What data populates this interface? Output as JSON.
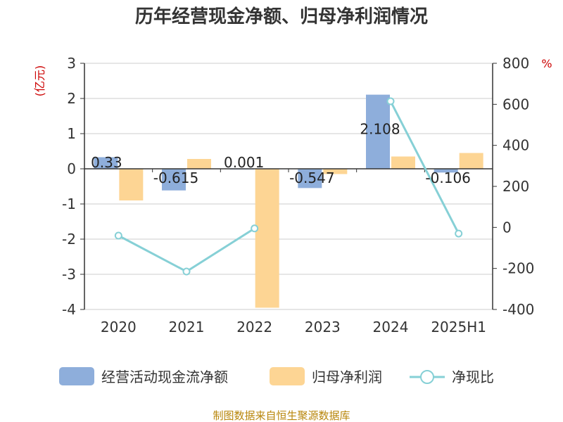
{
  "chart_data": {
    "type": "bar",
    "title": "历年经营现金净额、归母净利润情况",
    "categories": [
      "2020",
      "2021",
      "2022",
      "2023",
      "2024",
      "2025H1"
    ],
    "left_axis": {
      "unit": "(亿元)",
      "ylim": [
        -4,
        3
      ],
      "ticks": [
        "3",
        "2",
        "1",
        "0",
        "-1",
        "-2",
        "-3",
        "-4"
      ],
      "tick_values": [
        3,
        2,
        1,
        0,
        -1,
        -2,
        -3,
        -4
      ]
    },
    "right_axis": {
      "unit": "%",
      "ylim": [
        -400,
        800
      ],
      "ticks": [
        "800",
        "600",
        "400",
        "200",
        "0",
        "-200",
        "-400"
      ],
      "tick_values": [
        800,
        600,
        400,
        200,
        0,
        -200,
        -400
      ]
    },
    "series": [
      {
        "name": "经营活动现金流净额",
        "type": "bar",
        "axis": "left",
        "color": "#8eaedb",
        "values": [
          0.33,
          -0.615,
          0.001,
          -0.547,
          2.108,
          -0.106
        ],
        "labels": [
          "0.33",
          "-0.615",
          "0.001",
          "-0.547",
          "2.108",
          "-0.106"
        ]
      },
      {
        "name": "归母净利润",
        "type": "bar",
        "axis": "left",
        "color": "#fdd594",
        "values": [
          -0.9,
          0.28,
          -3.95,
          -0.15,
          0.35,
          0.45
        ]
      },
      {
        "name": "净现比",
        "type": "line",
        "axis": "right",
        "color": "#86d0d6",
        "values": [
          -40,
          -215,
          -5,
          null,
          615,
          -30
        ]
      }
    ],
    "legend_position": "bottom",
    "grid": true
  },
  "footer": {
    "source": "制图数据来自恒生聚源数据库"
  }
}
